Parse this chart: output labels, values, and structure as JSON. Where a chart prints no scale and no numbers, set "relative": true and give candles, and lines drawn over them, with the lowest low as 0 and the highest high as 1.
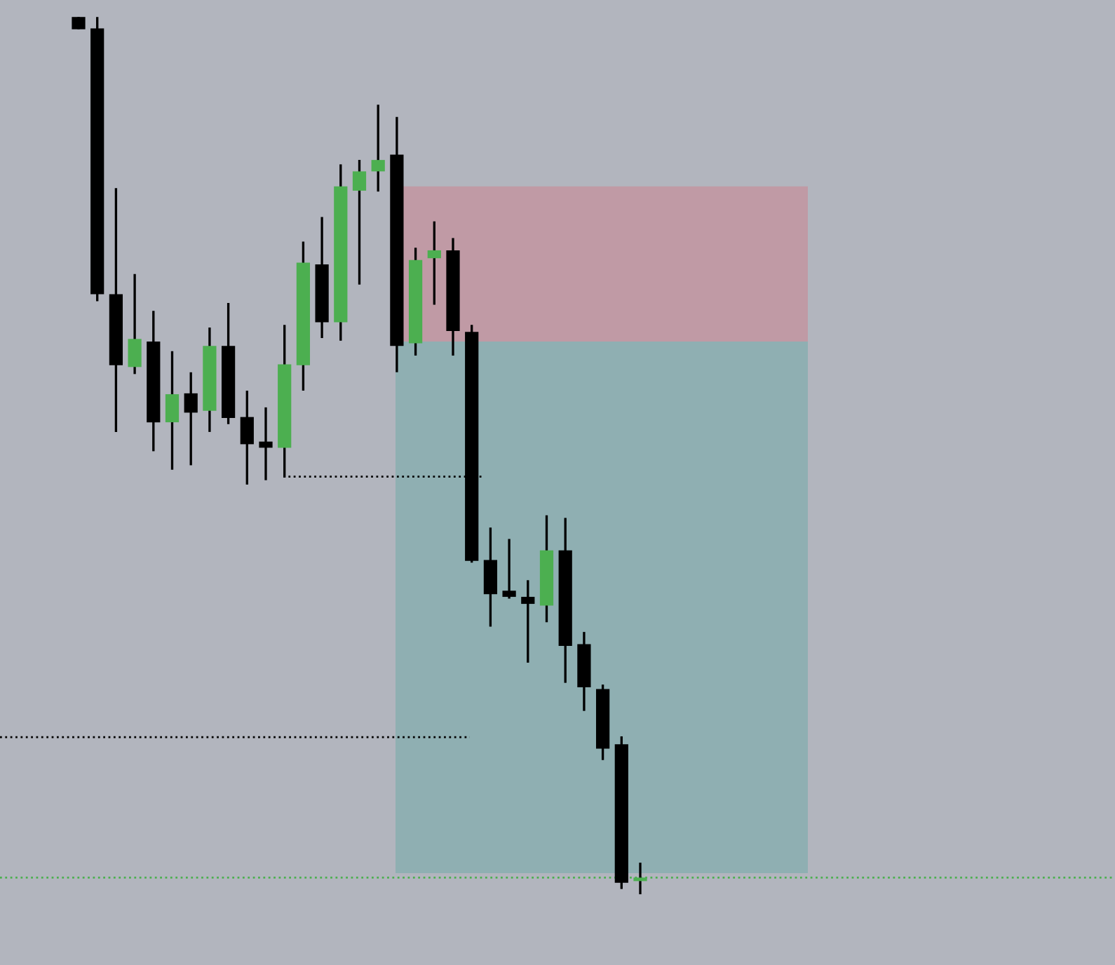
{
  "chart_data": {
    "type": "candlestick",
    "relative": true,
    "categories": [
      null,
      null,
      null,
      null,
      null,
      null,
      null,
      null,
      null,
      null,
      null,
      null,
      null,
      null,
      null,
      null,
      null,
      null,
      null,
      null,
      null,
      null,
      null,
      null,
      null,
      null,
      null,
      null,
      null,
      null,
      null
    ],
    "ohlc": [
      [
        1.0,
        1.0,
        0.986,
        0.986
      ],
      [
        0.987,
        1.0,
        0.676,
        0.684
      ],
      [
        0.684,
        0.805,
        0.527,
        0.603
      ],
      [
        0.601,
        0.707,
        0.593,
        0.633
      ],
      [
        0.63,
        0.665,
        0.505,
        0.538
      ],
      [
        0.538,
        0.619,
        0.484,
        0.57
      ],
      [
        0.571,
        0.595,
        0.489,
        0.549
      ],
      [
        0.551,
        0.646,
        0.527,
        0.625
      ],
      [
        0.625,
        0.674,
        0.536,
        0.543
      ],
      [
        0.544,
        0.574,
        0.467,
        0.513
      ],
      [
        0.516,
        0.555,
        0.472,
        0.509
      ],
      [
        0.509,
        0.649,
        0.475,
        0.604
      ],
      [
        0.603,
        0.744,
        0.574,
        0.72
      ],
      [
        0.718,
        0.772,
        0.634,
        0.652
      ],
      [
        0.652,
        0.832,
        0.631,
        0.807
      ],
      [
        0.802,
        0.837,
        0.695,
        0.824
      ],
      [
        0.824,
        0.9,
        0.801,
        0.837
      ],
      [
        0.843,
        0.886,
        0.595,
        0.625
      ],
      [
        0.628,
        0.737,
        0.614,
        0.723
      ],
      [
        0.725,
        0.767,
        0.672,
        0.734
      ],
      [
        0.734,
        0.748,
        0.614,
        0.642
      ],
      [
        0.641,
        0.649,
        0.378,
        0.38
      ],
      [
        0.381,
        0.418,
        0.305,
        0.342
      ],
      [
        0.346,
        0.405,
        0.337,
        0.339
      ],
      [
        0.339,
        0.358,
        0.264,
        0.331
      ],
      [
        0.329,
        0.432,
        0.31,
        0.392
      ],
      [
        0.392,
        0.429,
        0.241,
        0.283
      ],
      [
        0.285,
        0.299,
        0.209,
        0.236
      ],
      [
        0.234,
        0.239,
        0.153,
        0.166
      ],
      [
        0.171,
        0.18,
        0.006,
        0.013
      ],
      [
        0.015,
        0.036,
        0.0,
        0.019
      ]
    ],
    "bands": [
      {
        "axis": "y",
        "from": 0.63,
        "to": 0.807,
        "color": "#c09aa5"
      },
      {
        "axis": "y",
        "from": 0.024,
        "to": 0.63,
        "color": "#8fafb2"
      }
    ],
    "ref_lines": [
      {
        "axis": "y",
        "value": 0.476,
        "color": "#000000",
        "line_style": "dotted"
      },
      {
        "axis": "y",
        "value": 0.179,
        "color": "#000000",
        "line_style": "dotted"
      },
      {
        "axis": "y",
        "value": 0.019,
        "color": "#4caf50",
        "line_style": "dotted"
      }
    ]
  }
}
